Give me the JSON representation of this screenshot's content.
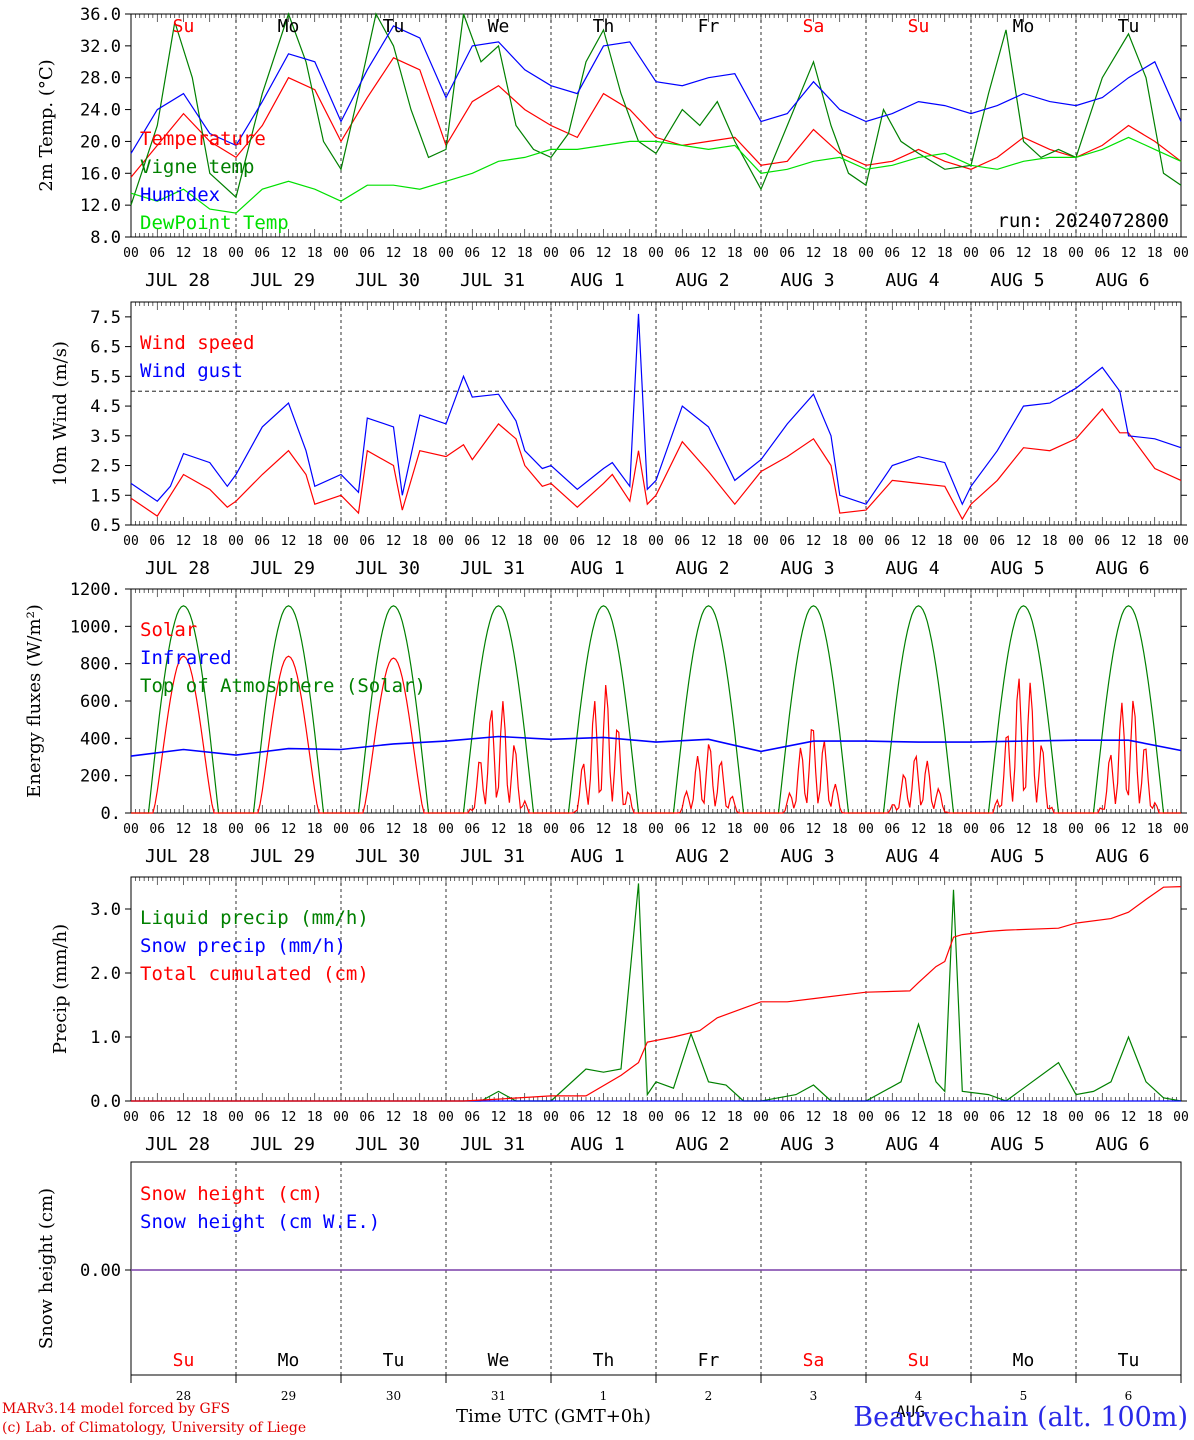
{
  "chart_data": [
    {
      "type": "line",
      "ylabel": "2m Temp. (°C)",
      "ylim": [
        8,
        36
      ],
      "yticks": [
        "8.0",
        "12.0",
        "16.0",
        "20.0",
        "24.0",
        "28.0",
        "32.0",
        "36.0"
      ],
      "annotation": "run: 2024072800",
      "series": [
        {
          "name": "Temperature",
          "color": "#ff0000",
          "x": [
            0,
            6,
            12,
            18,
            24,
            30,
            36,
            42,
            48,
            54,
            60,
            66,
            72,
            78,
            84,
            90,
            96,
            102,
            108,
            114,
            120,
            126,
            132,
            138,
            144,
            150,
            156,
            162,
            168,
            174,
            180,
            186,
            192,
            198,
            204,
            210,
            216,
            222,
            228,
            234,
            240
          ],
          "y": [
            15.5,
            19.5,
            23.5,
            20.0,
            18.0,
            22.0,
            28.0,
            26.5,
            20.0,
            25.5,
            30.5,
            29.0,
            19.5,
            25.0,
            27.0,
            24.0,
            22.0,
            20.5,
            26.0,
            24.0,
            20.5,
            19.5,
            20.0,
            20.5,
            17.0,
            17.5,
            21.5,
            18.5,
            17.0,
            17.5,
            19.0,
            17.5,
            16.5,
            18.0,
            20.5,
            19.0,
            18.0,
            19.5,
            22.0,
            20.0,
            17.5
          ]
        },
        {
          "name": "Vigne temp",
          "color": "#008000",
          "x": [
            0,
            6,
            10,
            14,
            18,
            24,
            30,
            36,
            40,
            44,
            48,
            52,
            56,
            60,
            64,
            68,
            72,
            76,
            80,
            84,
            88,
            92,
            96,
            100,
            104,
            108,
            112,
            116,
            120,
            126,
            130,
            134,
            138,
            144,
            150,
            156,
            160,
            164,
            168,
            172,
            176,
            180,
            186,
            192,
            196,
            200,
            204,
            208,
            212,
            216,
            222,
            228,
            232,
            236,
            240
          ],
          "y": [
            12.0,
            22.0,
            35.0,
            28.0,
            16.0,
            13.0,
            26.0,
            36.0,
            30.0,
            20.0,
            16.5,
            26.0,
            36.0,
            32.0,
            24.0,
            18.0,
            19.0,
            36.0,
            30.0,
            32.0,
            22.0,
            19.0,
            18.0,
            21.0,
            30.0,
            34.0,
            26.0,
            20.0,
            18.5,
            24.0,
            22.0,
            25.0,
            20.0,
            14.0,
            22.0,
            30.0,
            22.0,
            16.0,
            14.5,
            24.0,
            20.0,
            18.5,
            16.5,
            17.0,
            26.0,
            34.0,
            20.0,
            18.0,
            19.0,
            18.0,
            28.0,
            33.5,
            28.0,
            16.0,
            14.5
          ]
        },
        {
          "name": "Humidex",
          "color": "#0000ff",
          "x": [
            0,
            6,
            12,
            18,
            24,
            30,
            36,
            42,
            48,
            54,
            60,
            66,
            72,
            78,
            84,
            90,
            96,
            102,
            108,
            114,
            120,
            126,
            132,
            138,
            144,
            150,
            156,
            162,
            168,
            174,
            180,
            186,
            192,
            198,
            204,
            210,
            216,
            222,
            228,
            234,
            240
          ],
          "y": [
            18.5,
            24.0,
            26.0,
            21.0,
            19.5,
            25.0,
            31.0,
            30.0,
            22.5,
            29.0,
            34.5,
            33.0,
            25.5,
            32.0,
            32.5,
            29.0,
            27.0,
            26.0,
            32.0,
            32.5,
            27.5,
            27.0,
            28.0,
            28.5,
            22.5,
            23.5,
            27.5,
            24.0,
            22.5,
            23.5,
            25.0,
            24.5,
            23.5,
            24.5,
            26.0,
            25.0,
            24.5,
            25.5,
            28.0,
            30.0,
            22.5
          ]
        },
        {
          "name": "DewPoint Temp",
          "color": "#00e000",
          "x": [
            0,
            6,
            12,
            18,
            24,
            30,
            36,
            42,
            48,
            54,
            60,
            66,
            72,
            78,
            84,
            90,
            96,
            102,
            108,
            114,
            120,
            126,
            132,
            138,
            144,
            150,
            156,
            162,
            168,
            174,
            180,
            186,
            192,
            198,
            204,
            210,
            216,
            222,
            228,
            234,
            240
          ],
          "y": [
            13.5,
            12.5,
            14.0,
            11.5,
            11.0,
            14.0,
            15.0,
            14.0,
            12.5,
            14.5,
            14.5,
            14.0,
            15.0,
            16.0,
            17.5,
            18.0,
            19.0,
            19.0,
            19.5,
            20.0,
            20.0,
            19.5,
            19.0,
            19.5,
            16.0,
            16.5,
            17.5,
            18.0,
            16.5,
            17.0,
            18.0,
            18.5,
            17.0,
            16.5,
            17.5,
            18.0,
            18.0,
            19.0,
            20.5,
            19.0,
            17.5
          ]
        }
      ]
    },
    {
      "type": "line",
      "ylabel": "10m Wind (m/s)",
      "ylim": [
        0.5,
        8.0
      ],
      "yticks": [
        "0.5",
        "1.5",
        "2.5",
        "3.5",
        "4.5",
        "5.5",
        "6.5",
        "7.5"
      ],
      "refline": 5.0,
      "series": [
        {
          "name": "Wind speed",
          "color": "#ff0000",
          "x": [
            0,
            6,
            9,
            12,
            18,
            22,
            24,
            30,
            36,
            40,
            42,
            48,
            52,
            54,
            60,
            62,
            66,
            72,
            76,
            78,
            84,
            88,
            90,
            94,
            96,
            102,
            108,
            110,
            114,
            116,
            118,
            120,
            126,
            132,
            138,
            144,
            150,
            156,
            160,
            162,
            168,
            174,
            180,
            186,
            190,
            192,
            198,
            204,
            210,
            216,
            222,
            226,
            228,
            234,
            240
          ],
          "y": [
            1.4,
            0.8,
            1.5,
            2.2,
            1.7,
            1.1,
            1.3,
            2.2,
            3.0,
            2.2,
            1.2,
            1.5,
            0.9,
            3.0,
            2.5,
            1.0,
            3.0,
            2.8,
            3.2,
            2.7,
            3.9,
            3.4,
            2.5,
            1.8,
            1.9,
            1.1,
            1.9,
            2.2,
            1.3,
            3.0,
            1.2,
            1.5,
            3.3,
            2.3,
            1.2,
            2.3,
            2.8,
            3.4,
            2.5,
            0.9,
            1.0,
            2.0,
            1.9,
            1.8,
            0.7,
            1.2,
            2.0,
            3.1,
            3.0,
            3.4,
            4.4,
            3.6,
            3.6,
            2.4,
            2.0
          ]
        },
        {
          "name": "Wind gust",
          "color": "#0000ff",
          "x": [
            0,
            6,
            9,
            12,
            18,
            22,
            24,
            30,
            36,
            40,
            42,
            48,
            52,
            54,
            60,
            62,
            66,
            72,
            76,
            78,
            84,
            88,
            90,
            94,
            96,
            102,
            108,
            110,
            114,
            116,
            118,
            120,
            126,
            132,
            138,
            144,
            150,
            156,
            160,
            162,
            168,
            174,
            180,
            186,
            190,
            192,
            198,
            204,
            210,
            216,
            222,
            226,
            228,
            234,
            240
          ],
          "y": [
            1.9,
            1.3,
            1.8,
            2.9,
            2.6,
            1.8,
            2.2,
            3.8,
            4.6,
            3.0,
            1.8,
            2.2,
            1.6,
            4.1,
            3.8,
            1.5,
            4.2,
            3.9,
            5.5,
            4.8,
            4.9,
            4.0,
            3.0,
            2.4,
            2.5,
            1.7,
            2.4,
            2.6,
            1.8,
            7.6,
            1.7,
            2.0,
            4.5,
            3.8,
            2.0,
            2.7,
            3.9,
            4.9,
            3.5,
            1.5,
            1.2,
            2.5,
            2.8,
            2.6,
            1.2,
            1.8,
            3.0,
            4.5,
            4.6,
            5.1,
            5.8,
            5.0,
            3.5,
            3.4,
            3.1
          ]
        }
      ]
    },
    {
      "type": "line",
      "ylabel": "Energy fluxes (W/m²)",
      "ylim": [
        0,
        1200
      ],
      "yticks": [
        "0.",
        "200.",
        "400.",
        "600.",
        "800.",
        "1000.",
        "1200."
      ],
      "series": [
        {
          "name": "Solar",
          "color": "#ff0000",
          "peaks": [
            840,
            840,
            830,
            620,
            700,
            380,
            480,
            320,
            760,
            640
          ]
        },
        {
          "name": "Infrared",
          "color": "#0000ff",
          "x": [
            0,
            12,
            24,
            36,
            48,
            60,
            72,
            84,
            96,
            108,
            120,
            132,
            144,
            156,
            168,
            180,
            192,
            204,
            216,
            228,
            240
          ],
          "y": [
            305,
            340,
            310,
            345,
            340,
            370,
            385,
            410,
            395,
            405,
            380,
            395,
            330,
            385,
            385,
            380,
            380,
            385,
            390,
            390,
            335
          ]
        },
        {
          "name": "Top of Atmosphere (Solar)",
          "color": "#008000",
          "peak": 1110
        }
      ]
    },
    {
      "type": "line",
      "ylabel": "Precip (mm/h)",
      "ylim": [
        0,
        3.5
      ],
      "yticks": [
        "0.0",
        "1.0",
        "2.0",
        "3.0"
      ],
      "series": [
        {
          "name": "Liquid precip (mm/h)",
          "color": "#008000",
          "x": [
            0,
            80,
            84,
            88,
            96,
            104,
            108,
            112,
            116,
            118,
            120,
            124,
            128,
            132,
            136,
            140,
            144,
            152,
            156,
            160,
            164,
            168,
            176,
            180,
            184,
            186,
            188,
            190,
            196,
            200,
            212,
            216,
            220,
            224,
            228,
            232,
            236,
            240
          ],
          "y": [
            0,
            0,
            0.15,
            0,
            0,
            0.5,
            0.45,
            0.5,
            3.4,
            0.1,
            0.3,
            0.2,
            1.05,
            0.3,
            0.25,
            0,
            0,
            0.1,
            0.25,
            0,
            0,
            0,
            0.3,
            1.2,
            0.3,
            0.15,
            3.3,
            0.15,
            0.1,
            0,
            0.6,
            0.1,
            0.15,
            0.3,
            1.0,
            0.3,
            0.05,
            0
          ]
        },
        {
          "name": "Snow precip (mm/h)",
          "color": "#0000ff",
          "x": [
            0,
            240
          ],
          "y": [
            0,
            0
          ]
        },
        {
          "name": "Total cumulated (cm)",
          "color": "#ff0000",
          "x": [
            0,
            76,
            84,
            96,
            104,
            112,
            116,
            118,
            124,
            130,
            134,
            140,
            144,
            150,
            156,
            168,
            178,
            180,
            184,
            186,
            188,
            190,
            196,
            200,
            212,
            216,
            224,
            228,
            232,
            236,
            240
          ],
          "y": [
            0,
            0,
            0.03,
            0.08,
            0.08,
            0.4,
            0.6,
            0.92,
            1.0,
            1.1,
            1.3,
            1.45,
            1.55,
            1.55,
            1.6,
            1.7,
            1.72,
            1.85,
            2.1,
            2.18,
            2.56,
            2.6,
            2.65,
            2.67,
            2.7,
            2.78,
            2.85,
            2.95,
            3.15,
            3.34,
            3.35
          ]
        }
      ]
    },
    {
      "type": "line",
      "ylabel": "Snow height (cm)",
      "ytick": "0.00",
      "series": [
        {
          "name": "Snow height (cm)",
          "color": "#ff0000",
          "x": [
            0,
            240
          ],
          "y": [
            0,
            0
          ]
        },
        {
          "name": "Snow height (cm W.E.)",
          "color": "#0000ff",
          "x": [
            0,
            240
          ],
          "y": [
            0,
            0
          ]
        }
      ]
    }
  ],
  "days": {
    "weekdays": [
      "Su",
      "Mo",
      "Tu",
      "We",
      "Th",
      "Fr",
      "Sa",
      "Su",
      "Mo",
      "Tu"
    ],
    "weekday_colors": [
      "#ff0000",
      "#000000",
      "#000000",
      "#000000",
      "#000000",
      "#000000",
      "#ff0000",
      "#ff0000",
      "#000000",
      "#000000"
    ],
    "dates": [
      "JUL 28",
      "JUL 29",
      "JUL 30",
      "JUL 31",
      "AUG  1",
      "AUG  2",
      "AUG  3",
      "AUG  4",
      "AUG  5",
      "AUG  6"
    ],
    "day_numbers": [
      "28",
      "29",
      "30",
      "31",
      "1",
      "2",
      "3",
      "4",
      "5",
      "6"
    ],
    "hour_labels": [
      "00",
      "06",
      "12",
      "18"
    ],
    "month_label": "AUG"
  },
  "footer": {
    "credit_line1": "MARv3.14 model forced by GFS",
    "credit_line2": "(c) Lab. of Climatology, University of Liege",
    "time_axis": "Time UTC (GMT+0h)",
    "station": "Beauvechain (alt. 100m)"
  }
}
